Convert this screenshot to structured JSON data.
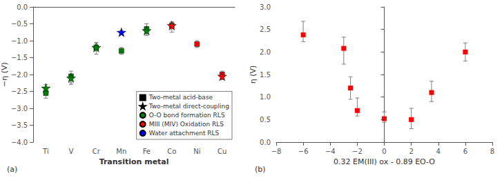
{
  "chart_data": [
    {
      "type": "scatter",
      "title": "(a)",
      "xlabel": "Transition metal",
      "ylabel": "−η (V)",
      "categories": [
        "Ti",
        "V",
        "Cr",
        "Mn",
        "Fe",
        "Co",
        "Ni",
        "Cu"
      ],
      "series": [
        {
          "name": "Two-metal acid-base",
          "marker": "square",
          "color": "black",
          "values": [
            -2.55,
            -2.05,
            -1.2,
            -1.3,
            -0.65,
            -0.55,
            -1.1,
            -2.0
          ],
          "colors": [
            "green",
            "green",
            "green",
            "green",
            "green",
            "green",
            "red",
            "red"
          ],
          "yerr_low": [
            0.15,
            0.25,
            0.2,
            0.1,
            0.2,
            0.2,
            0.1,
            0.15
          ],
          "yerr_high": [
            0.15,
            0.15,
            0.15,
            0.1,
            0.15,
            0.1,
            0.1,
            0.1
          ]
        },
        {
          "name": "Two-metal direct-coupling",
          "marker": "star",
          "color": "black",
          "values": [
            -2.4,
            -2.1,
            -1.2,
            -0.75,
            -0.7,
            -0.55,
            null,
            -2.05
          ],
          "colors": [
            "green",
            "green",
            "green",
            "blue",
            "green",
            "red",
            null,
            "red"
          ],
          "yerr_low": [
            0.1,
            0.15,
            0.1,
            0.05,
            0.1,
            0.1,
            null,
            0.1
          ],
          "yerr_high": [
            0.1,
            0.1,
            0.1,
            0.05,
            0.1,
            0.1,
            null,
            0.1
          ]
        },
        {
          "name": "O-O bond formation RLS",
          "marker": "circle",
          "color": "green",
          "values": [
            null,
            null,
            null,
            null,
            null,
            null,
            null,
            null
          ]
        },
        {
          "name": "MIII (MIV) Oxidation RLS",
          "marker": "circle",
          "color": "red",
          "values": [
            null,
            null,
            null,
            null,
            null,
            null,
            null,
            null
          ]
        },
        {
          "name": "Water attachment RLS",
          "marker": "circle",
          "color": "blue",
          "values": [
            null,
            null,
            null,
            null,
            null,
            null,
            null,
            null
          ]
        }
      ],
      "ylim": [
        -4.0,
        0.0
      ],
      "yticks": [
        {
          "value": 0.0,
          "label": "0.0"
        },
        {
          "value": -0.5,
          "label": "−0.5"
        },
        {
          "value": -1.0,
          "label": "−1.0"
        },
        {
          "value": -1.5,
          "label": "−1.5"
        },
        {
          "value": -2.0,
          "label": "−2.0"
        },
        {
          "value": -2.5,
          "label": "−2.5"
        },
        {
          "value": -3.0,
          "label": "−3.0"
        },
        {
          "value": -3.5,
          "label": "−3.5"
        },
        {
          "value": -4.0,
          "label": "−4.0"
        }
      ],
      "grid": false,
      "legend": "lower right"
    },
    {
      "type": "scatter",
      "title": "(b)",
      "xlabel": "0.32 EM(III) ox - 0.89 EO-O",
      "ylabel": "η (V)",
      "x": [
        -6.0,
        -3.0,
        -2.5,
        -2.0,
        0.0,
        2.0,
        3.5,
        6.0
      ],
      "values": [
        2.38,
        2.08,
        1.2,
        0.7,
        0.52,
        0.5,
        1.1,
        2.0
      ],
      "yerr_low": [
        0.15,
        0.35,
        0.25,
        0.12,
        0.08,
        0.2,
        0.2,
        0.2
      ],
      "yerr_high": [
        0.3,
        0.25,
        0.25,
        0.28,
        0.15,
        0.25,
        0.25,
        0.2
      ],
      "color": "red",
      "marker": "square",
      "xlim": [
        -8,
        8
      ],
      "xticks": [
        {
          "value": -8,
          "label": "−8"
        },
        {
          "value": -6,
          "label": "−6"
        },
        {
          "value": -4,
          "label": "−4"
        },
        {
          "value": -2,
          "label": "−2"
        },
        0,
        2,
        4,
        6,
        8
      ],
      "ylim": [
        0.0,
        3.0
      ],
      "yticks": [
        {
          "value": 0.0,
          "label": "0.0"
        },
        0.5,
        {
          "value": 1.0,
          "label": "1.0"
        },
        1.5,
        {
          "value": 2.0,
          "label": "2.0"
        },
        2.5,
        {
          "value": 3.0,
          "label": "3.0"
        }
      ],
      "grid": false
    }
  ]
}
